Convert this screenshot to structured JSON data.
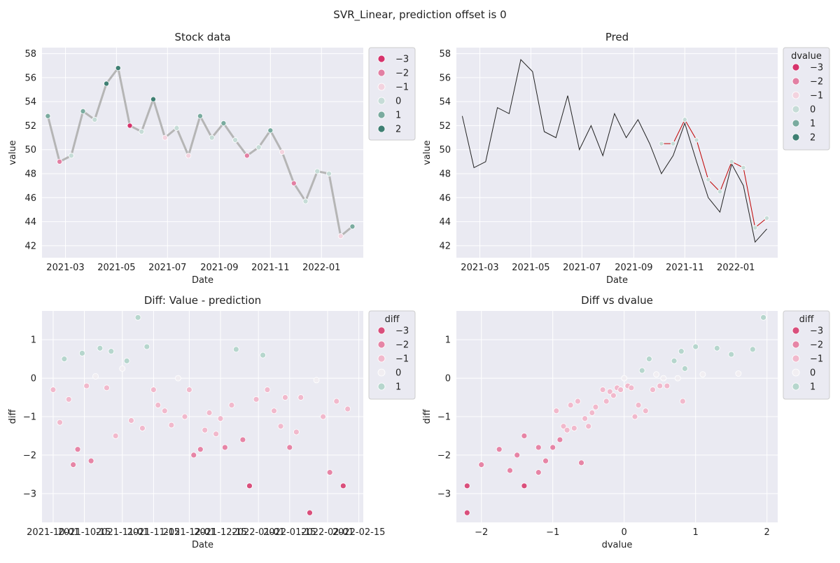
{
  "figure": {
    "title": "SVR_Linear, prediction offset is 0"
  },
  "colors": {
    "panel_bg": "#eaeaf2",
    "grid": "#ffffff",
    "pred_line": "#c00000",
    "value_line": "#222222",
    "stock_line": "#b5b5b5",
    "neg3": "#d6336c",
    "neg2": "#e27fa3",
    "neg1": "#f3d3df",
    "zero": "#c6dcd7",
    "pos1": "#7aab9f",
    "pos2": "#3f7f73",
    "diff_neg3": "#d94f7c",
    "diff_neg2": "#e685a6",
    "diff_neg1": "#f1b9cc",
    "diff_zero": "#f1eef2",
    "diff_pos1": "#b6d6cd"
  },
  "chart_data": [
    {
      "id": "stock",
      "type": "line+scatter",
      "title": "Stock data",
      "xlabel": "Date",
      "ylabel": "value",
      "xlim": [
        "2021-02-01",
        "2022-02-20"
      ],
      "ylim": [
        41,
        58.5
      ],
      "x_ticks": [
        "2021-03",
        "2021-05",
        "2021-07",
        "2021-09",
        "2021-11",
        "2022-01"
      ],
      "y_ticks": [
        "42",
        "44",
        "46",
        "48",
        "50",
        "52",
        "54",
        "56",
        "58"
      ],
      "legend": {
        "title": "",
        "position": "outside-right",
        "entries": [
          "−3",
          "−2",
          "−1",
          "0",
          "1",
          "2"
        ]
      },
      "series": [
        {
          "dates": [
            "2021-02-08",
            "2021-02-22",
            "2021-03-08",
            "2021-03-22",
            "2021-04-05",
            "2021-04-19",
            "2021-05-03",
            "2021-05-17",
            "2021-05-31",
            "2021-06-14",
            "2021-06-28",
            "2021-07-12",
            "2021-07-26",
            "2021-08-09",
            "2021-08-23",
            "2021-09-06",
            "2021-09-20",
            "2021-10-04",
            "2021-10-18",
            "2021-11-01",
            "2021-11-15",
            "2021-11-29",
            "2021-12-13",
            "2021-12-27",
            "2022-01-10",
            "2022-01-24",
            "2022-02-07"
          ],
          "values": [
            52.8,
            49.0,
            49.5,
            53.2,
            52.5,
            55.5,
            56.8,
            52.0,
            51.5,
            54.2,
            51.0,
            51.8,
            49.5,
            52.8,
            51.0,
            52.2,
            50.8,
            49.5,
            50.2,
            51.6,
            49.8,
            47.2,
            45.7,
            48.2,
            48.0,
            42.8,
            43.6
          ],
          "dvalue_class": [
            1,
            -2,
            0,
            1,
            0,
            2,
            2,
            -3,
            0,
            2,
            -1,
            0,
            -1,
            1,
            0,
            1,
            0,
            -2,
            0,
            1,
            -1,
            -2,
            0,
            0,
            0,
            -1,
            1
          ]
        }
      ]
    },
    {
      "id": "pred",
      "type": "line+scatter",
      "title": "Pred",
      "xlabel": "Date",
      "ylabel": "value",
      "xlim": [
        "2021-02-01",
        "2022-02-20"
      ],
      "ylim": [
        41,
        58.5
      ],
      "x_ticks": [
        "2021-03",
        "2021-05",
        "2021-07",
        "2021-09",
        "2021-11",
        "2022-01"
      ],
      "y_ticks": [
        "42",
        "44",
        "46",
        "48",
        "50",
        "52",
        "54",
        "56",
        "58"
      ],
      "legend": {
        "title": "dvalue",
        "position": "outside-right",
        "entries": [
          "−3",
          "−2",
          "−1",
          "0",
          "1",
          "2"
        ]
      },
      "series": [
        {
          "dates": [
            "2021-02-08",
            "2021-02-22",
            "2021-03-08",
            "2021-03-22",
            "2021-04-05",
            "2021-04-19",
            "2021-05-03",
            "2021-05-17",
            "2021-05-31",
            "2021-06-14",
            "2021-06-28",
            "2021-07-12",
            "2021-07-26",
            "2021-08-09",
            "2021-08-23",
            "2021-09-06",
            "2021-09-20",
            "2021-10-04",
            "2021-10-18",
            "2021-11-01",
            "2021-11-15",
            "2021-11-29",
            "2021-12-13",
            "2021-12-27",
            "2022-01-10",
            "2022-01-24",
            "2022-02-07"
          ],
          "values": [
            52.8,
            48.5,
            49.0,
            53.5,
            53.0,
            57.5,
            56.5,
            51.5,
            51.0,
            54.5,
            50.0,
            52.0,
            49.5,
            53.0,
            51.0,
            52.5,
            50.5,
            48.0,
            49.5,
            52.2,
            49.0,
            46.0,
            44.8,
            48.8,
            47.0,
            42.3,
            43.4
          ]
        },
        {
          "dates": [
            "2021-10-04",
            "2021-10-18",
            "2021-11-01",
            "2021-11-15",
            "2021-11-29",
            "2021-12-13",
            "2021-12-27",
            "2022-01-10",
            "2022-01-24",
            "2022-02-07"
          ],
          "values": [
            50.5,
            50.5,
            52.5,
            50.8,
            47.5,
            46.5,
            49.0,
            48.5,
            43.5,
            44.3
          ]
        }
      ]
    },
    {
      "id": "diff",
      "type": "scatter",
      "title": "Diff: Value - prediction",
      "xlabel": "Date",
      "ylabel": "diff",
      "xlim": [
        "2021-09-26",
        "2022-02-17"
      ],
      "ylim": [
        -3.75,
        1.75
      ],
      "x_ticks": [
        "2021-10-01",
        "2021-10-15",
        "2021-11-01",
        "2021-11-15",
        "2021-12-01",
        "2021-12-15",
        "2022-01-01",
        "2022-01-15",
        "2022-02-01",
        "2022-02-15"
      ],
      "y_ticks": [
        "1",
        "0",
        "−1",
        "−2",
        "−3"
      ],
      "legend": {
        "title": "diff",
        "position": "outside-right",
        "entries": [
          "−3",
          "−2",
          "−1",
          "0",
          "1"
        ]
      },
      "series": [
        {
          "dates": [
            "2021-10-01",
            "2021-10-04",
            "2021-10-06",
            "2021-10-08",
            "2021-10-10",
            "2021-10-12",
            "2021-10-14",
            "2021-10-16",
            "2021-10-18",
            "2021-10-20",
            "2021-10-22",
            "2021-10-25",
            "2021-10-27",
            "2021-10-29",
            "2021-11-01",
            "2021-11-03",
            "2021-11-05",
            "2021-11-08",
            "2021-11-10",
            "2021-11-12",
            "2021-11-15",
            "2021-11-17",
            "2021-11-20",
            "2021-11-23",
            "2021-11-26",
            "2021-11-29",
            "2021-12-01",
            "2021-12-03",
            "2021-12-06",
            "2021-12-08",
            "2021-12-10",
            "2021-12-13",
            "2021-12-15",
            "2021-12-17",
            "2021-12-20",
            "2021-12-22",
            "2021-12-25",
            "2021-12-28",
            "2021-12-31",
            "2022-01-03",
            "2022-01-05",
            "2022-01-08",
            "2022-01-11",
            "2022-01-13",
            "2022-01-15",
            "2022-01-18",
            "2022-01-20",
            "2022-01-24",
            "2022-01-27",
            "2022-01-30",
            "2022-02-02",
            "2022-02-05",
            "2022-02-08",
            "2022-02-10"
          ],
          "values": [
            -0.3,
            -1.15,
            0.5,
            -0.55,
            -2.25,
            -1.85,
            0.65,
            -0.2,
            -2.15,
            0.05,
            0.78,
            -0.25,
            0.7,
            -1.5,
            0.25,
            0.45,
            -1.1,
            1.58,
            -1.3,
            0.82,
            -0.3,
            -0.7,
            -0.85,
            -1.22,
            0.0,
            -1.0,
            -0.3,
            -2.0,
            -1.85,
            -1.35,
            -0.9,
            -1.45,
            -1.05,
            -1.8,
            -0.7,
            0.75,
            -1.6,
            -2.8,
            -0.55,
            0.6,
            -0.3,
            -0.85,
            -1.25,
            -0.5,
            -1.8,
            -1.4,
            -0.5,
            -3.5,
            -0.05,
            -1.0,
            -2.45,
            -0.6,
            -2.8,
            -0.8
          ],
          "diff_class": [
            -1,
            -1,
            1,
            -1,
            -2,
            -2,
            1,
            -1,
            -2,
            0,
            1,
            -1,
            1,
            -1,
            0,
            1,
            -1,
            1,
            -1,
            1,
            -1,
            -1,
            -1,
            -1,
            0,
            -1,
            -1,
            -2,
            -2,
            -1,
            -1,
            -1,
            -1,
            -2,
            -1,
            1,
            -2,
            -3,
            -1,
            1,
            -1,
            -1,
            -1,
            -1,
            -2,
            -1,
            -1,
            -3,
            0,
            -1,
            -2,
            -1,
            -3,
            -1
          ]
        }
      ]
    },
    {
      "id": "diff-vs-dvalue",
      "type": "scatter",
      "title": "Diff vs dvalue",
      "xlabel": "dvalue",
      "ylabel": "diff",
      "xlim": [
        -2.35,
        2.15
      ],
      "ylim": [
        -3.75,
        1.75
      ],
      "x_ticks": [
        "−2",
        "−1",
        "0",
        "1",
        "2"
      ],
      "y_ticks": [
        "1",
        "0",
        "−1",
        "−2",
        "−3"
      ],
      "legend": {
        "title": "diff",
        "position": "outside-right",
        "entries": [
          "−3",
          "−2",
          "−1",
          "0",
          "1"
        ]
      },
      "series": [
        {
          "x": [
            -2.2,
            -2.2,
            -2.0,
            -1.75,
            -1.6,
            -1.5,
            -1.4,
            -1.4,
            -1.2,
            -1.2,
            -1.1,
            -1.0,
            -0.95,
            -0.9,
            -0.85,
            -0.8,
            -0.75,
            -0.7,
            -0.65,
            -0.6,
            -0.55,
            -0.5,
            -0.45,
            -0.4,
            -0.3,
            -0.25,
            -0.2,
            -0.15,
            -0.1,
            -0.05,
            0.0,
            0.05,
            0.1,
            0.15,
            0.2,
            0.25,
            0.3,
            0.35,
            0.4,
            0.45,
            0.5,
            0.55,
            0.6,
            0.7,
            0.75,
            0.8,
            0.82,
            0.85,
            1.0,
            1.1,
            1.3,
            1.5,
            1.6,
            1.8,
            1.95
          ],
          "y": [
            -2.8,
            -3.5,
            -2.25,
            -1.85,
            -2.4,
            -2.0,
            -2.8,
            -1.5,
            -1.8,
            -2.45,
            -2.15,
            -1.8,
            -0.85,
            -1.6,
            -1.25,
            -1.35,
            -0.7,
            -1.3,
            -0.6,
            -2.2,
            -1.05,
            -1.25,
            -0.9,
            -0.75,
            -0.3,
            -0.6,
            -0.35,
            -0.45,
            -0.25,
            -0.3,
            0.0,
            -0.2,
            -0.25,
            -1.0,
            -0.7,
            0.2,
            -0.85,
            0.5,
            -0.3,
            0.1,
            -0.2,
            0.0,
            -0.2,
            0.45,
            0.0,
            0.7,
            -0.6,
            0.25,
            0.82,
            0.1,
            0.78,
            0.62,
            0.12,
            0.75,
            1.58
          ],
          "diff_class": [
            -3,
            -3,
            -2,
            -2,
            -2,
            -2,
            -3,
            -2,
            -2,
            -2,
            -2,
            -2,
            -1,
            -2,
            -1,
            -1,
            -1,
            -1,
            -1,
            -2,
            -1,
            -1,
            -1,
            -1,
            -1,
            -1,
            -1,
            -1,
            -1,
            -1,
            0,
            -1,
            -1,
            -1,
            -1,
            1,
            -1,
            1,
            -1,
            0,
            -1,
            0,
            -1,
            1,
            0,
            1,
            -1,
            1,
            1,
            0,
            1,
            1,
            0,
            1,
            1
          ]
        }
      ]
    }
  ]
}
